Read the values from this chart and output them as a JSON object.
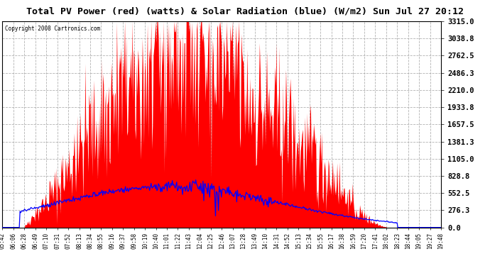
{
  "title": "Total PV Power (red) (watts) & Solar Radiation (blue) (W/m2) Sun Jul 27 20:12",
  "copyright": "Copyright 2008 Cartronics.com",
  "background_color": "#ffffff",
  "plot_bg_color": "#ffffff",
  "title_bg_color": "#ffffff",
  "ymax": 3315.0,
  "ymin": 0.0,
  "yticks": [
    0.0,
    276.3,
    552.5,
    828.8,
    1105.0,
    1381.3,
    1657.5,
    1933.8,
    2210.0,
    2486.3,
    2762.5,
    3038.8,
    3315.0
  ],
  "ytick_labels": [
    "0.0",
    "276.3",
    "552.5",
    "828.8",
    "1105.0",
    "1381.3",
    "1657.5",
    "1933.8",
    "2210.0",
    "2486.3",
    "2762.5",
    "3038.8",
    "3315.0"
  ],
  "xtick_labels": [
    "05:42",
    "06:06",
    "06:28",
    "06:49",
    "07:10",
    "07:31",
    "07:52",
    "08:13",
    "08:34",
    "08:55",
    "09:16",
    "09:37",
    "09:58",
    "10:19",
    "10:40",
    "11:01",
    "11:22",
    "11:43",
    "12:04",
    "12:25",
    "12:46",
    "13:07",
    "13:28",
    "13:49",
    "14:10",
    "14:31",
    "14:52",
    "15:13",
    "15:34",
    "15:55",
    "16:17",
    "16:38",
    "16:59",
    "17:20",
    "17:41",
    "18:02",
    "18:23",
    "18:44",
    "19:05",
    "19:27",
    "19:48"
  ],
  "red_color": "#ff0000",
  "blue_color": "#0000ff",
  "grid_color": "#aaaaaa",
  "title_color": "#000000",
  "tick_color": "#000000",
  "figsize": [
    6.9,
    3.75
  ],
  "dpi": 100
}
